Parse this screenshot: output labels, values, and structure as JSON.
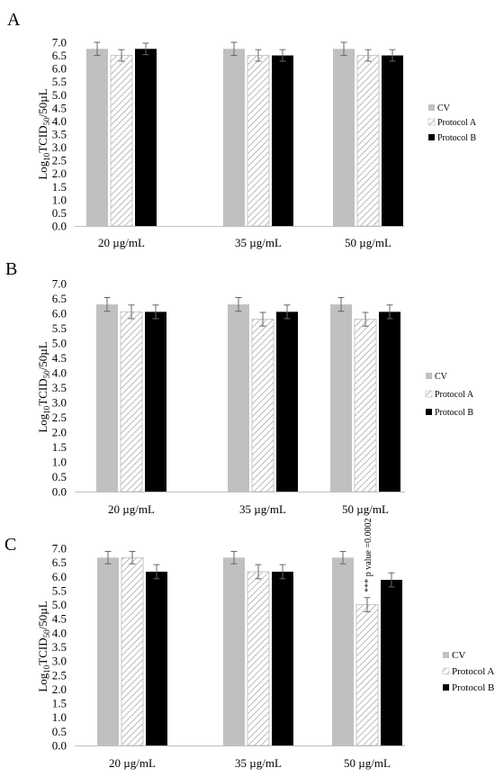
{
  "chart_data": [
    {
      "panel_label": "A",
      "type": "bar",
      "categories": [
        "20 µg/mL",
        "35 µg/mL",
        "50 µg/mL"
      ],
      "series": [
        {
          "name": "CV",
          "values": [
            6.75,
            6.75,
            6.75
          ],
          "errors": [
            0.25,
            0.25,
            0.25
          ]
        },
        {
          "name": "Protocol A",
          "values": [
            6.5,
            6.5,
            6.5
          ],
          "errors": [
            0.22,
            0.22,
            0.22
          ]
        },
        {
          "name": "Protocol B",
          "values": [
            6.75,
            6.5,
            6.5
          ],
          "errors": [
            0.22,
            0.22,
            0.22
          ]
        }
      ],
      "ylabel": {
        "pre": "Log",
        "sub1": "10",
        "mid": "TCID",
        "sub2": "50",
        "post": "/50µL"
      },
      "ylim": [
        0,
        7
      ],
      "yticks": [
        "0.0",
        "0.5",
        "1.0",
        "1.5",
        "2.0",
        "2.5",
        "3.0",
        "3.5",
        "4.0",
        "4.5",
        "5.0",
        "5.5",
        "6.0",
        "6.5",
        "7.0"
      ],
      "grid": false,
      "legend_position": "right"
    },
    {
      "panel_label": "B",
      "type": "bar",
      "categories": [
        "20 µg/mL",
        "35 µg/mL",
        "50 µg/mL"
      ],
      "series": [
        {
          "name": "CV",
          "values": [
            6.3,
            6.3,
            6.3
          ],
          "errors": [
            0.23,
            0.23,
            0.23
          ]
        },
        {
          "name": "Protocol A",
          "values": [
            6.05,
            5.8,
            5.8
          ],
          "errors": [
            0.23,
            0.23,
            0.23
          ]
        },
        {
          "name": "Protocol B",
          "values": [
            6.05,
            6.05,
            6.05
          ],
          "errors": [
            0.23,
            0.23,
            0.23
          ]
        }
      ],
      "ylabel": {
        "pre": "Log",
        "sub1": "10",
        "mid": "TCID",
        "sub2": "50",
        "post": "/50µL"
      },
      "ylim": [
        0,
        7
      ],
      "yticks": [
        "0.0",
        "0.5",
        "1.0",
        "1.5",
        "2.0",
        "2.5",
        "3.0",
        "3.5",
        "4.0",
        "4.5",
        "5.0",
        "5.5",
        "6.0",
        "6.5",
        "7.0"
      ],
      "grid": false,
      "legend_position": "right"
    },
    {
      "panel_label": "C",
      "type": "bar",
      "categories": [
        "20 µg/mL",
        "35 µg/mL",
        "50 µg/mL"
      ],
      "series": [
        {
          "name": "CV",
          "values": [
            6.67,
            6.67,
            6.67
          ],
          "errors": [
            0.22,
            0.22,
            0.22
          ]
        },
        {
          "name": "Protocol A",
          "values": [
            6.67,
            6.17,
            5.0
          ],
          "errors": [
            0.22,
            0.25,
            0.25
          ]
        },
        {
          "name": "Protocol B",
          "values": [
            6.17,
            6.17,
            5.88
          ],
          "errors": [
            0.25,
            0.25,
            0.25
          ]
        }
      ],
      "ylabel": {
        "pre": "Log",
        "sub1": "10",
        "mid": "TCID",
        "sub2": "50",
        "post": "/50µL"
      },
      "ylim": [
        0,
        7
      ],
      "yticks": [
        "0.0",
        "0.5",
        "1.0",
        "1.5",
        "2.0",
        "2.5",
        "3.0",
        "3.5",
        "4.0",
        "4.5",
        "5.0",
        "5.5",
        "6.0",
        "6.5",
        "7.0"
      ],
      "grid": false,
      "legend_position": "right",
      "annotation": {
        "text": "*** p value =0.0002",
        "category_index": 2,
        "series_index": 1
      }
    }
  ],
  "colors": {
    "CV": "#c0c0c0",
    "Protocol A": "#ffffff",
    "Protocol B": "#000000",
    "hatch": "#a8a8a8",
    "error_bar": "#666666",
    "axis": "#bfbfbf"
  }
}
